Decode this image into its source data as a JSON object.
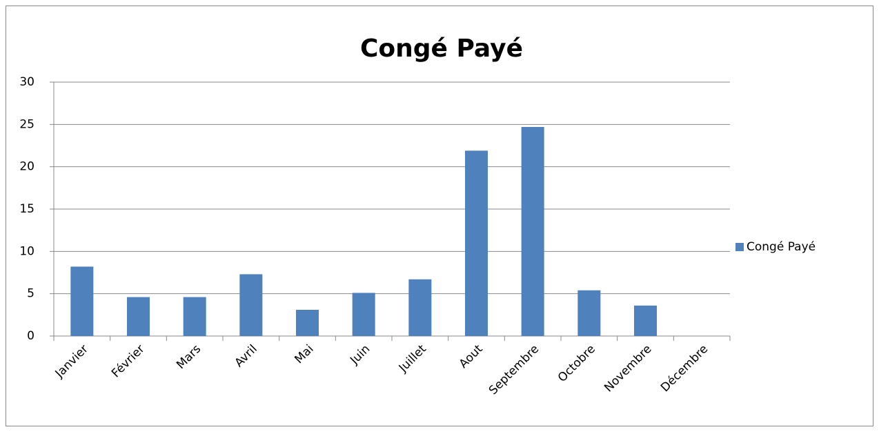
{
  "chart_data": {
    "type": "bar",
    "title": "Congé Payé",
    "categories": [
      "Janvier",
      "Février",
      "Mars",
      "Avril",
      "Mai",
      "Juin",
      "Juillet",
      "Aout",
      "Septembre",
      "Octobre",
      "Novembre",
      "Décembre"
    ],
    "series": [
      {
        "name": "Congé Payé",
        "color": "#4f81bd",
        "values": [
          8.2,
          4.6,
          4.6,
          7.3,
          3.1,
          5.1,
          6.7,
          21.9,
          24.7,
          5.4,
          3.6,
          null
        ]
      }
    ],
    "ylim": [
      0,
      30
    ],
    "yticks": [
      0,
      5,
      10,
      15,
      20,
      25,
      30
    ],
    "grid": true,
    "legend": "right"
  }
}
